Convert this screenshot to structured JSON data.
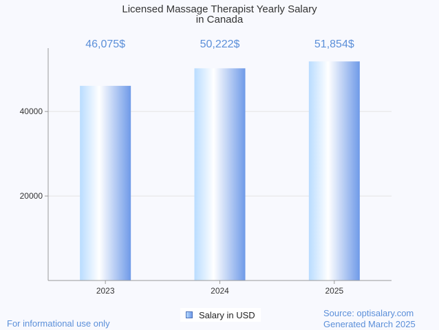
{
  "chart_data": {
    "type": "bar",
    "title": [
      "Licensed Massage Therapist Yearly Salary",
      "in Canada"
    ],
    "categories": [
      "2023",
      "2024",
      "2025"
    ],
    "series": [
      {
        "name": "Salary in USD",
        "values": [
          46075,
          50222,
          51854
        ]
      }
    ],
    "data_labels": [
      "46,075$",
      "50,222$",
      "51,854$"
    ],
    "yticks": [
      20000,
      40000
    ],
    "ylim": [
      0,
      55000
    ],
    "grid": true,
    "legend": "bottom-center",
    "colors": {
      "bar_light": "#ffffff",
      "bar_mid": "#b9dcff",
      "bar_dark": "#6f9ae8",
      "label": "#5b8fd9"
    }
  },
  "footer": {
    "left": "For informational use only",
    "right_source": "Source: optisalary.com",
    "right_generated": "Generated March 2025"
  }
}
